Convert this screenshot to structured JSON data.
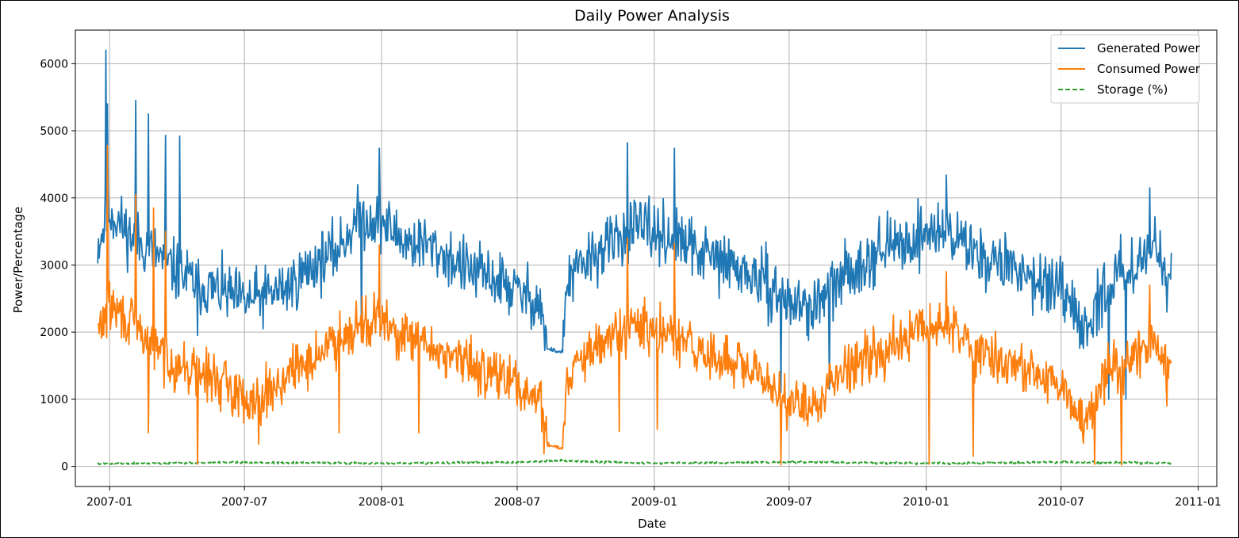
{
  "chart_data": {
    "type": "line",
    "title": "Daily Power Analysis",
    "xlabel": "Date",
    "ylabel": "Power/Percentage",
    "xlim": [
      "2006-11-16",
      "2011-01-26"
    ],
    "ylim": [
      -300,
      6500
    ],
    "grid": true,
    "legend_position": "top-right",
    "x_ticks": [
      "2007-01",
      "2007-07",
      "2008-01",
      "2008-07",
      "2009-01",
      "2009-07",
      "2010-01",
      "2010-07",
      "2011-01"
    ],
    "y_ticks": [
      "0",
      "1000",
      "2000",
      "3000",
      "4000",
      "5000",
      "6000"
    ],
    "date_range": [
      "2006-12-16",
      "2010-11-26"
    ],
    "series": [
      {
        "name": "Generated Power",
        "color": "#1f77b4",
        "style": "solid",
        "keyframes": [
          [
            "2006-12-16",
            3300
          ],
          [
            "2007-01-01",
            3800
          ],
          [
            "2007-02-01",
            3400
          ],
          [
            "2007-03-01",
            3200
          ],
          [
            "2007-04-01",
            2900
          ],
          [
            "2007-05-01",
            2700
          ],
          [
            "2007-06-01",
            2600
          ],
          [
            "2007-07-01",
            2450
          ],
          [
            "2007-08-01",
            2550
          ],
          [
            "2007-09-01",
            2700
          ],
          [
            "2007-10-01",
            3000
          ],
          [
            "2007-11-01",
            3200
          ],
          [
            "2007-12-01",
            3700
          ],
          [
            "2008-01-01",
            3650
          ],
          [
            "2008-02-01",
            3350
          ],
          [
            "2008-03-01",
            3300
          ],
          [
            "2008-04-01",
            3100
          ],
          [
            "2008-05-01",
            2900
          ],
          [
            "2008-06-01",
            2800
          ],
          [
            "2008-07-01",
            2600
          ],
          [
            "2008-08-01",
            2450
          ],
          [
            "2008-08-10",
            1750
          ],
          [
            "2008-08-31",
            1700
          ],
          [
            "2008-09-05",
            2700
          ],
          [
            "2008-10-01",
            3050
          ],
          [
            "2008-11-01",
            3300
          ],
          [
            "2008-12-01",
            3550
          ],
          [
            "2009-01-01",
            3500
          ],
          [
            "2009-02-01",
            3350
          ],
          [
            "2009-03-01",
            3200
          ],
          [
            "2009-04-01",
            3050
          ],
          [
            "2009-05-01",
            2900
          ],
          [
            "2009-06-01",
            2700
          ],
          [
            "2009-07-01",
            2450
          ],
          [
            "2009-08-01",
            2350
          ],
          [
            "2009-09-01",
            2700
          ],
          [
            "2009-10-01",
            3000
          ],
          [
            "2009-11-01",
            3250
          ],
          [
            "2009-12-01",
            3300
          ],
          [
            "2010-01-01",
            3500
          ],
          [
            "2010-02-01",
            3500
          ],
          [
            "2010-03-01",
            3250
          ],
          [
            "2010-04-01",
            3050
          ],
          [
            "2010-05-01",
            2950
          ],
          [
            "2010-06-01",
            2800
          ],
          [
            "2010-07-01",
            2550
          ],
          [
            "2010-08-01",
            2000
          ],
          [
            "2010-09-01",
            2700
          ],
          [
            "2010-10-01",
            3000
          ],
          [
            "2010-11-01",
            3250
          ],
          [
            "2010-11-26",
            3000
          ]
        ],
        "peaks": [
          [
            "2006-12-27",
            6200
          ],
          [
            "2006-12-29",
            5400
          ],
          [
            "2007-02-05",
            5450
          ],
          [
            "2007-02-22",
            5250
          ],
          [
            "2007-03-17",
            4930
          ],
          [
            "2007-04-05",
            4920
          ],
          [
            "2007-12-29",
            4740
          ],
          [
            "2008-11-26",
            4820
          ],
          [
            "2009-01-28",
            4740
          ],
          [
            "2010-01-28",
            4340
          ],
          [
            "2010-10-28",
            4150
          ]
        ],
        "dips": [
          [
            "2007-04-29",
            1950
          ],
          [
            "2007-12-05",
            1900
          ],
          [
            "2009-06-20",
            1100
          ],
          [
            "2009-08-24",
            1150
          ],
          [
            "2010-09-03",
            1000
          ],
          [
            "2010-09-26",
            1000
          ],
          [
            "2010-11-20",
            2300
          ]
        ],
        "noise": 380,
        "seed": 11
      },
      {
        "name": "Consumed Power",
        "color": "#ff7f0e",
        "style": "solid",
        "keyframes": [
          [
            "2006-12-16",
            2000
          ],
          [
            "2007-01-01",
            2400
          ],
          [
            "2007-02-01",
            2100
          ],
          [
            "2007-03-01",
            1800
          ],
          [
            "2007-04-01",
            1500
          ],
          [
            "2007-05-01",
            1400
          ],
          [
            "2007-06-01",
            1250
          ],
          [
            "2007-07-01",
            1000
          ],
          [
            "2007-08-01",
            1100
          ],
          [
            "2007-09-01",
            1400
          ],
          [
            "2007-10-01",
            1600
          ],
          [
            "2007-11-01",
            1900
          ],
          [
            "2007-12-01",
            2150
          ],
          [
            "2008-01-01",
            2150
          ],
          [
            "2008-02-01",
            1900
          ],
          [
            "2008-03-01",
            1800
          ],
          [
            "2008-04-01",
            1650
          ],
          [
            "2008-05-01",
            1500
          ],
          [
            "2008-06-01",
            1400
          ],
          [
            "2008-07-01",
            1200
          ],
          [
            "2008-08-01",
            1000
          ],
          [
            "2008-08-10",
            330
          ],
          [
            "2008-08-31",
            270
          ],
          [
            "2008-09-05",
            1300
          ],
          [
            "2008-10-01",
            1600
          ],
          [
            "2008-11-01",
            1900
          ],
          [
            "2008-12-01",
            2100
          ],
          [
            "2009-01-01",
            2000
          ],
          [
            "2009-02-01",
            1900
          ],
          [
            "2009-03-01",
            1700
          ],
          [
            "2009-04-01",
            1600
          ],
          [
            "2009-05-01",
            1450
          ],
          [
            "2009-06-01",
            1250
          ],
          [
            "2009-07-01",
            1000
          ],
          [
            "2009-08-01",
            800
          ],
          [
            "2009-09-01",
            1400
          ],
          [
            "2009-10-01",
            1600
          ],
          [
            "2009-11-01",
            1750
          ],
          [
            "2009-12-01",
            1850
          ],
          [
            "2010-01-01",
            2100
          ],
          [
            "2010-02-01",
            2100
          ],
          [
            "2010-03-01",
            1800
          ],
          [
            "2010-04-01",
            1600
          ],
          [
            "2010-05-01",
            1500
          ],
          [
            "2010-06-01",
            1350
          ],
          [
            "2010-07-01",
            1150
          ],
          [
            "2010-08-01",
            600
          ],
          [
            "2010-09-01",
            1450
          ],
          [
            "2010-10-01",
            1650
          ],
          [
            "2010-11-01",
            1800
          ],
          [
            "2010-11-26",
            1500
          ]
        ],
        "peaks": [
          [
            "2006-12-29",
            4780
          ],
          [
            "2007-02-05",
            4050
          ],
          [
            "2007-03-01",
            3850
          ],
          [
            "2007-03-17",
            3500
          ],
          [
            "2007-12-29",
            3300
          ],
          [
            "2008-11-26",
            3400
          ],
          [
            "2009-01-28",
            3330
          ],
          [
            "2010-01-28",
            2900
          ],
          [
            "2010-10-28",
            2700
          ]
        ],
        "dips": [
          [
            "2007-02-22",
            500
          ],
          [
            "2007-04-29",
            30
          ],
          [
            "2007-07-20",
            330
          ],
          [
            "2007-11-05",
            500
          ],
          [
            "2008-02-20",
            500
          ],
          [
            "2008-11-15",
            520
          ],
          [
            "2009-01-05",
            550
          ],
          [
            "2009-06-20",
            20
          ],
          [
            "2010-01-05",
            30
          ],
          [
            "2010-03-05",
            150
          ],
          [
            "2010-08-15",
            30
          ],
          [
            "2010-09-20",
            20
          ],
          [
            "2010-11-20",
            900
          ]
        ],
        "noise": 330,
        "seed": 29
      },
      {
        "name": "Storage (%)",
        "color": "#2ca02c",
        "style": "dashed",
        "keyframes": [
          [
            "2006-12-16",
            40
          ],
          [
            "2007-07-01",
            60
          ],
          [
            "2008-01-01",
            45
          ],
          [
            "2008-07-01",
            60
          ],
          [
            "2008-08-20",
            85
          ],
          [
            "2009-01-01",
            45
          ],
          [
            "2009-07-01",
            65
          ],
          [
            "2010-01-01",
            45
          ],
          [
            "2010-07-01",
            60
          ],
          [
            "2010-11-26",
            50
          ]
        ],
        "peaks": [],
        "dips": [],
        "noise": 14,
        "seed": 5
      }
    ]
  }
}
